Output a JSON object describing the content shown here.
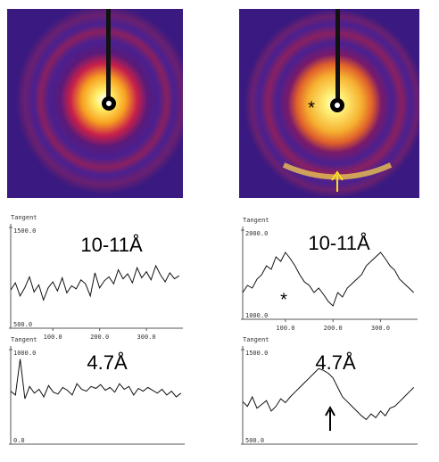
{
  "image_annotation": "*",
  "chart_data": [
    {
      "type": "line",
      "title": "10-11Å",
      "ylabel": "Tangent",
      "x": [
        10,
        20,
        30,
        40,
        50,
        60,
        70,
        80,
        90,
        100,
        110,
        120,
        130,
        140,
        150,
        160,
        170,
        180,
        190,
        200,
        210,
        220,
        230,
        240,
        250,
        260,
        270,
        280,
        290,
        300,
        310,
        320,
        330,
        340,
        350,
        360,
        370
      ],
      "series": [
        {
          "color": "#111111",
          "values": [
            880,
            950,
            820,
            900,
            1010,
            860,
            930,
            780,
            900,
            960,
            870,
            1000,
            850,
            920,
            890,
            980,
            940,
            820,
            1050,
            900,
            970,
            1010,
            940,
            1080,
            990,
            1040,
            950,
            1100,
            1000,
            1060,
            980,
            1120,
            1030,
            960,
            1050,
            990,
            1020
          ]
        }
      ],
      "xlim": [
        10,
        378
      ],
      "ylim": [
        500,
        1500
      ],
      "xticks": [
        {
          "value": 100,
          "label": "100.0"
        },
        {
          "value": 200,
          "label": "200.0"
        },
        {
          "value": 300,
          "label": "300.0"
        }
      ],
      "yticks": [
        {
          "value": 500,
          "label": "500.0"
        },
        {
          "value": 1500,
          "label": "1500.0"
        }
      ]
    },
    {
      "type": "line",
      "title": "10-11Å",
      "ylabel": "Tangent",
      "annotation": "*",
      "x": [
        10,
        20,
        30,
        40,
        50,
        60,
        70,
        80,
        90,
        100,
        110,
        120,
        130,
        140,
        150,
        160,
        170,
        180,
        190,
        200,
        210,
        220,
        230,
        240,
        250,
        260,
        270,
        280,
        290,
        300,
        310,
        320,
        330,
        340,
        350,
        360,
        370
      ],
      "series": [
        {
          "color": "#111111",
          "values": [
            1300,
            1380,
            1350,
            1450,
            1500,
            1600,
            1560,
            1700,
            1650,
            1750,
            1680,
            1600,
            1500,
            1420,
            1380,
            1300,
            1350,
            1280,
            1200,
            1150,
            1300,
            1250,
            1350,
            1400,
            1450,
            1500,
            1600,
            1650,
            1700,
            1750,
            1680,
            1600,
            1550,
            1450,
            1400,
            1350,
            1300
          ]
        }
      ],
      "xlim": [
        10,
        378
      ],
      "ylim": [
        1000,
        2000
      ],
      "xticks": [
        {
          "value": 100,
          "label": "100.0"
        },
        {
          "value": 200,
          "label": "200.0"
        },
        {
          "value": 300,
          "label": "300.0"
        }
      ],
      "yticks": [
        {
          "value": 1000,
          "label": "1000.0"
        },
        {
          "value": 2000,
          "label": "2000.0"
        }
      ]
    },
    {
      "type": "line",
      "title": "4.7Å",
      "ylabel": "Tangent",
      "x": [
        10,
        20,
        30,
        40,
        50,
        60,
        70,
        80,
        90,
        100,
        110,
        120,
        130,
        140,
        150,
        160,
        170,
        180,
        190,
        200,
        210,
        220,
        230,
        240,
        250,
        260,
        270,
        280,
        290,
        300,
        310,
        320,
        330,
        340,
        350,
        360,
        370
      ],
      "series": [
        {
          "color": "#111111",
          "values": [
            560,
            520,
            900,
            480,
            610,
            540,
            580,
            500,
            620,
            550,
            530,
            600,
            570,
            520,
            640,
            580,
            560,
            610,
            590,
            630,
            570,
            600,
            550,
            640,
            580,
            610,
            520,
            590,
            560,
            600,
            570,
            540,
            580,
            520,
            560,
            500,
            540
          ]
        }
      ],
      "xlim": [
        10,
        378
      ],
      "ylim": [
        0,
        1000
      ],
      "yticks": [
        {
          "value": 0,
          "label": "0.0"
        },
        {
          "value": 1000,
          "label": "1000.0"
        }
      ]
    },
    {
      "type": "line",
      "title": "4.7Å",
      "ylabel": "Tangent",
      "x": [
        10,
        20,
        30,
        40,
        50,
        60,
        70,
        80,
        90,
        100,
        110,
        120,
        130,
        140,
        150,
        160,
        170,
        180,
        190,
        200,
        210,
        220,
        230,
        240,
        250,
        260,
        270,
        280,
        290,
        300,
        310,
        320,
        330,
        340,
        350,
        360,
        370
      ],
      "series": [
        {
          "color": "#111111",
          "values": [
            950,
            900,
            1000,
            880,
            920,
            960,
            850,
            900,
            980,
            940,
            1000,
            1050,
            1100,
            1150,
            1200,
            1250,
            1300,
            1280,
            1250,
            1200,
            1100,
            1000,
            950,
            900,
            850,
            800,
            760,
            820,
            780,
            850,
            800,
            880,
            900,
            950,
            1000,
            1050,
            1100
          ]
        }
      ],
      "xlim": [
        10,
        378
      ],
      "ylim": [
        500,
        1500
      ],
      "yticks": [
        {
          "value": 500,
          "label": "500.0"
        },
        {
          "value": 1500,
          "label": "1500.0"
        }
      ]
    }
  ]
}
